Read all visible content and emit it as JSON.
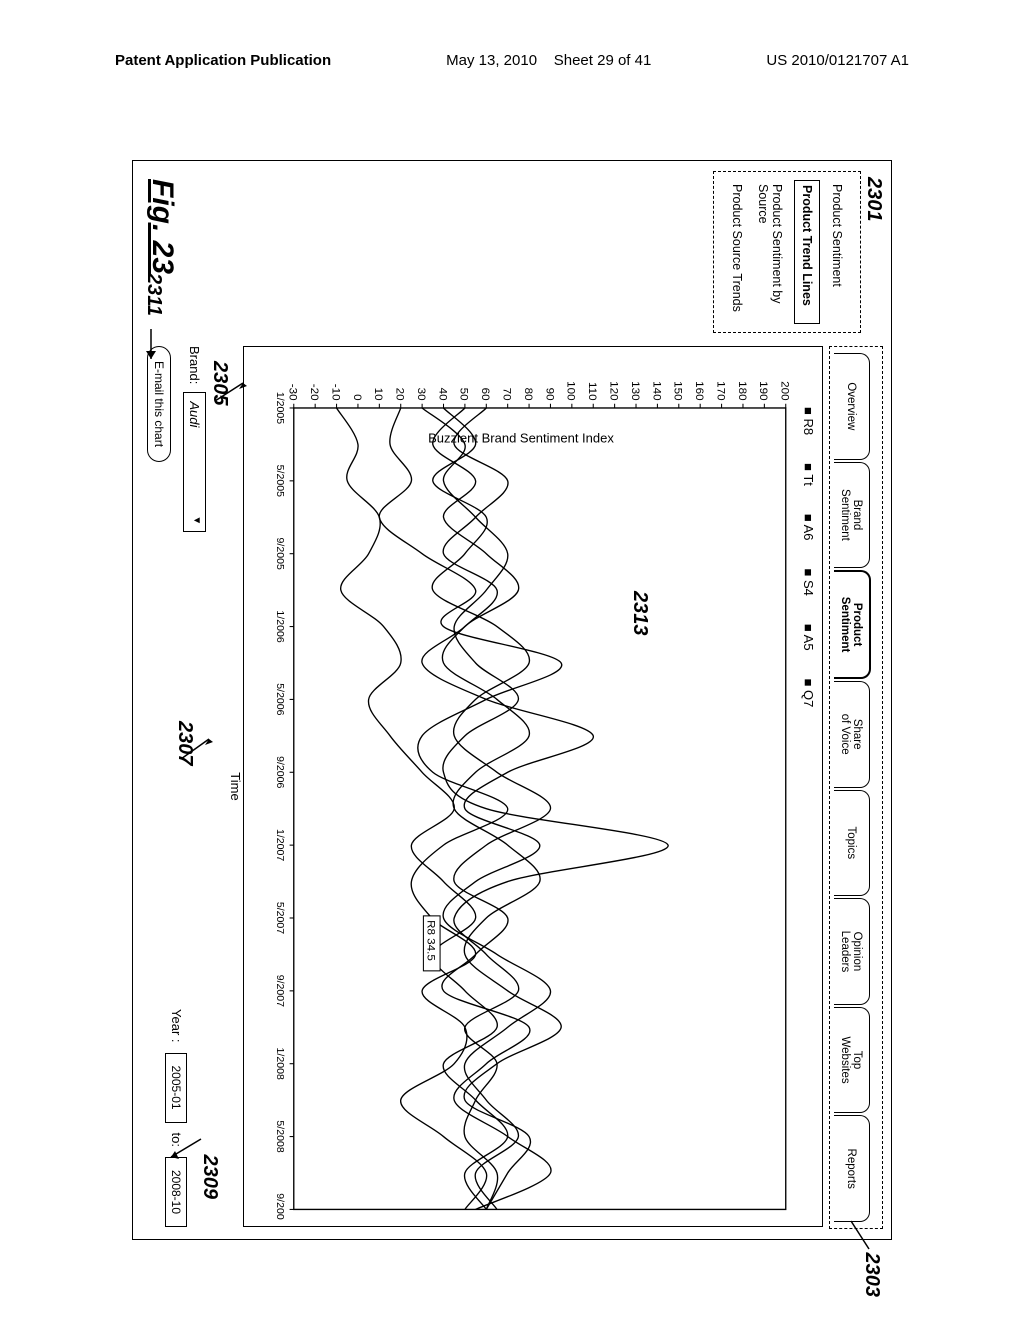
{
  "header": {
    "left": "Patent Application Publication",
    "center_date": "May 13, 2010",
    "center_sheet": "Sheet 29 of 41",
    "right": "US 2010/0121707 A1"
  },
  "figure_label": "Fig. 23",
  "callouts": {
    "c2301": "2301",
    "c2303": "2303",
    "c2305": "2305",
    "c2307": "2307",
    "c2309": "2309",
    "c2311": "2311",
    "c2313": "2313"
  },
  "sidebar": {
    "items": [
      {
        "label": "Product Sentiment",
        "active": false
      },
      {
        "label": "Product Trend Lines",
        "active": true
      },
      {
        "label": "Product Sentiment by Source",
        "active": false
      },
      {
        "label": "Product Source Trends",
        "active": false
      }
    ]
  },
  "tabs": {
    "items": [
      {
        "label": "Overview",
        "active": false
      },
      {
        "label": "Brand Sentiment",
        "active": false
      },
      {
        "label": "Product Sentiment",
        "active": true
      },
      {
        "label": "Share of Voice",
        "active": false
      },
      {
        "label": "Topics",
        "active": false
      },
      {
        "label": "Opinion Leaders",
        "active": false
      },
      {
        "label": "Top Websites",
        "active": false
      },
      {
        "label": "Reports",
        "active": false
      }
    ]
  },
  "chart": {
    "type": "line",
    "y_axis_label": "Buzzient Brand Sentiment Index",
    "x_axis_label": "Time",
    "ylim": [
      -30,
      200
    ],
    "ytick_step": 10,
    "yticks": [
      200,
      190,
      180,
      170,
      160,
      150,
      140,
      130,
      120,
      110,
      100,
      90,
      80,
      70,
      60,
      50,
      40,
      30,
      20,
      10,
      0,
      -10,
      -20,
      -30
    ],
    "x_categories": [
      "1/2005",
      "5/2005",
      "9/2005",
      "1/2006",
      "5/2006",
      "9/2006",
      "1/2007",
      "5/2007",
      "9/2007",
      "1/2008",
      "5/2008",
      "9/2008"
    ],
    "legend": [
      "R8",
      "Tt",
      "A6",
      "S4",
      "A5",
      "Q7"
    ],
    "series_color": "#000000",
    "background_color": "#ffffff",
    "grid": false,
    "line_width": 1.3,
    "tooltip": {
      "label": "R8 34.5",
      "x_index": 7,
      "y": 34.5
    },
    "series": {
      "R8": [
        20,
        15,
        25,
        10,
        30,
        55,
        40,
        95,
        60,
        30,
        35,
        70,
        40,
        25,
        34.5,
        55,
        30,
        50,
        45,
        20,
        40,
        60,
        50
      ],
      "Tt": [
        60,
        45,
        70,
        55,
        40,
        65,
        50,
        30,
        60,
        110,
        70,
        50,
        85,
        55,
        40,
        65,
        90,
        70,
        50,
        60,
        75,
        55,
        65
      ],
      "A6": [
        40,
        55,
        35,
        60,
        50,
        35,
        65,
        80,
        55,
        45,
        65,
        90,
        60,
        45,
        70,
        55,
        40,
        80,
        60,
        45,
        70,
        90,
        55
      ],
      "S4": [
        30,
        50,
        40,
        55,
        70,
        60,
        45,
        55,
        75,
        50,
        40,
        60,
        145,
        70,
        45,
        60,
        75,
        50,
        65,
        55,
        50,
        65,
        60
      ],
      "A5": [
        -10,
        0,
        -5,
        10,
        5,
        -8,
        12,
        20,
        5,
        15,
        30,
        45,
        25,
        40,
        55,
        35,
        50,
        65,
        40,
        55,
        70,
        50,
        60
      ],
      "Q7": [
        50,
        35,
        55,
        40,
        60,
        75,
        50,
        40,
        65,
        80,
        55,
        45,
        70,
        85,
        60,
        50,
        70,
        95,
        65,
        50,
        80,
        70,
        60
      ]
    }
  },
  "controls": {
    "brand_label": "Brand:",
    "brand_value": "Audi",
    "year_label": "Year :",
    "year_from": "2005-01",
    "to_label": "to:",
    "year_to": "2008-10",
    "email_label": "E-mail this chart"
  }
}
